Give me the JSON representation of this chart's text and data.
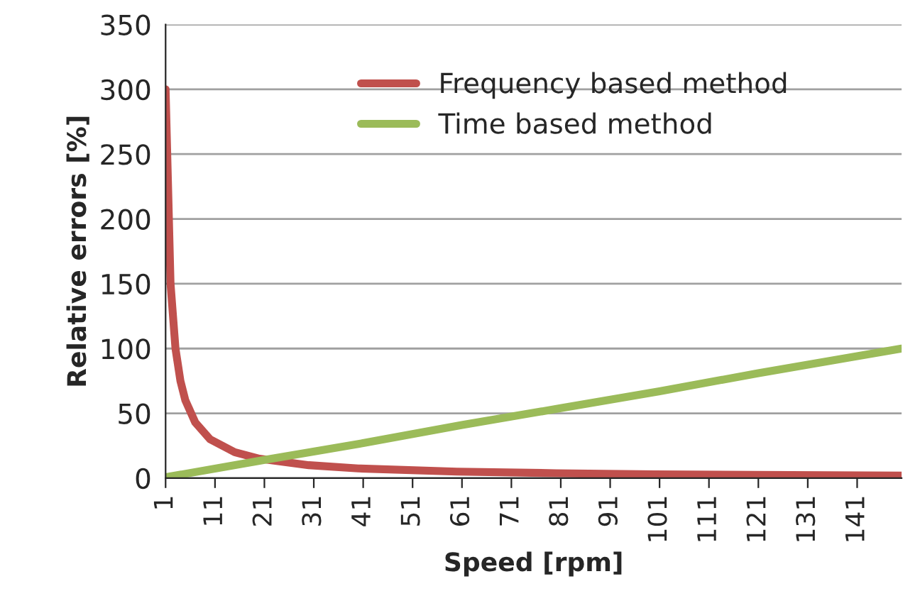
{
  "chart_data": {
    "type": "line",
    "xlabel": "Speed [rpm]",
    "ylabel": "Relative errors [%]",
    "xlim": [
      1,
      150
    ],
    "xticks": [
      1,
      11,
      21,
      31,
      41,
      51,
      61,
      71,
      81,
      91,
      101,
      111,
      121,
      131,
      141
    ],
    "ylim": [
      0,
      350
    ],
    "yticks": [
      0,
      50,
      100,
      150,
      200,
      250,
      300,
      350
    ],
    "grid": "y",
    "legend": "top right",
    "series": [
      {
        "name": "Frequency based method",
        "color": "#c0504d",
        "x": [
          1,
          2,
          3,
          4,
          5,
          7,
          10,
          15,
          20,
          30,
          40,
          60,
          80,
          90,
          100,
          120,
          150
        ],
        "values": [
          300,
          150,
          100,
          75,
          60,
          43,
          30,
          20,
          15,
          10,
          7.5,
          5,
          3.8,
          3.3,
          3,
          2.5,
          2
        ]
      },
      {
        "name": "Time based method",
        "color": "#9bbb59",
        "x": [
          1,
          21,
          41,
          61,
          81,
          101,
          121,
          150
        ],
        "values": [
          0.7,
          14,
          27,
          41,
          54,
          67,
          81,
          100
        ]
      }
    ]
  }
}
